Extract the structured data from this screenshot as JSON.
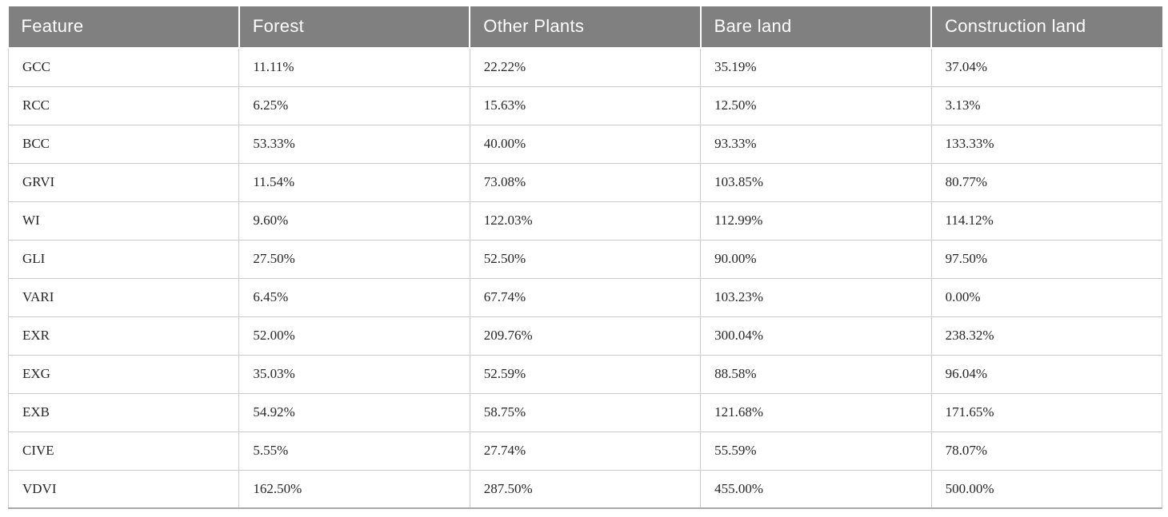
{
  "table": {
    "title": "feature-separability-table",
    "columns": [
      "Feature",
      "Forest",
      "Other Plants",
      "Bare land",
      "Construction land"
    ],
    "rows": [
      {
        "feature": "GCC",
        "values": [
          "11.11%",
          "22.22%",
          "35.19%",
          "37.04%"
        ]
      },
      {
        "feature": "RCC",
        "values": [
          "6.25%",
          "15.63%",
          "12.50%",
          "3.13%"
        ]
      },
      {
        "feature": "BCC",
        "values": [
          "53.33%",
          "40.00%",
          "93.33%",
          "133.33%"
        ]
      },
      {
        "feature": "GRVI",
        "values": [
          "11.54%",
          "73.08%",
          "103.85%",
          "80.77%"
        ]
      },
      {
        "feature": "WI",
        "values": [
          "9.60%",
          "122.03%",
          "112.99%",
          "114.12%"
        ]
      },
      {
        "feature": "GLI",
        "values": [
          "27.50%",
          "52.50%",
          "90.00%",
          "97.50%"
        ]
      },
      {
        "feature": "VARI",
        "values": [
          "6.45%",
          "67.74%",
          "103.23%",
          "0.00%"
        ]
      },
      {
        "feature": "EXR",
        "values": [
          "52.00%",
          "209.76%",
          "300.04%",
          "238.32%"
        ]
      },
      {
        "feature": "EXG",
        "values": [
          "35.03%",
          "52.59%",
          "88.58%",
          "96.04%"
        ]
      },
      {
        "feature": "EXB",
        "values": [
          "54.92%",
          "58.75%",
          "121.68%",
          "171.65%"
        ]
      },
      {
        "feature": "CIVE",
        "values": [
          "5.55%",
          "27.74%",
          "55.59%",
          "78.07%"
        ]
      },
      {
        "feature": "VDVI",
        "values": [
          "162.50%",
          "287.50%",
          "455.00%",
          "500.00%"
        ]
      }
    ]
  },
  "chart_data": {
    "type": "table",
    "columns": [
      "Feature",
      "Forest",
      "Other Plants",
      "Bare land",
      "Construction land"
    ],
    "rows": [
      [
        "GCC",
        11.11,
        22.22,
        35.19,
        37.04
      ],
      [
        "RCC",
        6.25,
        15.63,
        12.5,
        3.13
      ],
      [
        "BCC",
        53.33,
        40.0,
        93.33,
        133.33
      ],
      [
        "GRVI",
        11.54,
        73.08,
        103.85,
        80.77
      ],
      [
        "WI",
        9.6,
        122.03,
        112.99,
        114.12
      ],
      [
        "GLI",
        27.5,
        52.5,
        90.0,
        97.5
      ],
      [
        "VARI",
        6.45,
        67.74,
        103.23,
        0.0
      ],
      [
        "EXR",
        52.0,
        209.76,
        300.04,
        238.32
      ],
      [
        "EXG",
        35.03,
        52.59,
        88.58,
        96.04
      ],
      [
        "EXB",
        54.92,
        58.75,
        121.68,
        171.65
      ],
      [
        "CIVE",
        5.55,
        27.74,
        55.59,
        78.07
      ],
      [
        "VDVI",
        162.5,
        287.5,
        455.0,
        500.0
      ]
    ],
    "unit": "%"
  },
  "colors": {
    "header_background": "#808080",
    "header_text": "#ffffff",
    "cell_border": "#cccccc",
    "outer_bottom_border": "#a8a8a8",
    "body_text": "#262626",
    "header_divider": "#ffffff"
  }
}
